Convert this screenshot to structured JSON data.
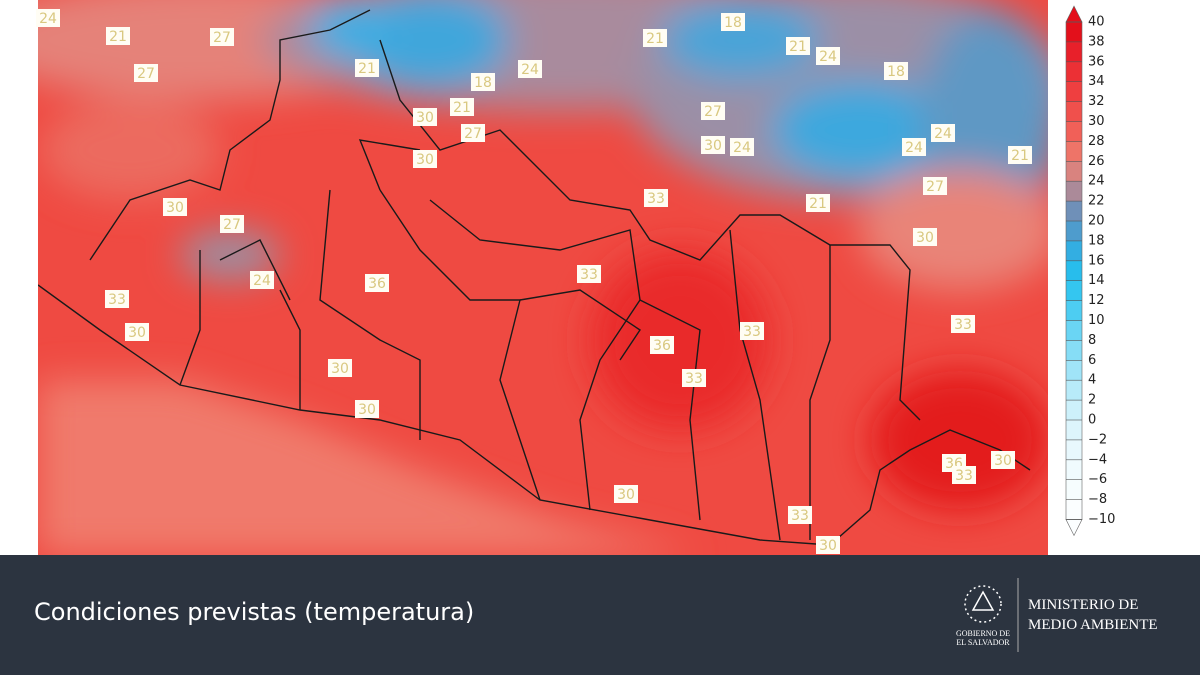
{
  "map": {
    "contour_labels": [
      "24",
      "21",
      "27",
      "27",
      "21",
      "18",
      "24",
      "21",
      "18",
      "21",
      "24",
      "18",
      "27",
      "30",
      "21",
      "27",
      "30",
      "24",
      "24",
      "24",
      "21",
      "30",
      "33",
      "27",
      "21",
      "30",
      "27",
      "30",
      "24",
      "33",
      "36",
      "33",
      "30",
      "33",
      "33",
      "36",
      "30",
      "33",
      "30",
      "36",
      "33",
      "30",
      "30",
      "33",
      "30"
    ]
  },
  "colorbar": {
    "ticks": [
      40,
      38,
      36,
      34,
      32,
      30,
      28,
      26,
      24,
      22,
      20,
      18,
      16,
      14,
      12,
      10,
      8,
      6,
      4,
      2,
      0,
      {
        "value": -2,
        "label": "−2"
      },
      {
        "value": -4,
        "label": "−4"
      },
      {
        "value": -6,
        "label": "−6"
      },
      {
        "value": -8,
        "label": "−8"
      },
      {
        "value": -10,
        "label": "−10"
      }
    ],
    "colors": [
      "#e3101b",
      "#e8202a",
      "#ec3035",
      "#ef3f40",
      "#f0504c",
      "#f16058",
      "#ee7468",
      "#d9837f",
      "#ab8a99",
      "#6f90b8",
      "#4e9ccd",
      "#33aee2",
      "#28bdec",
      "#34c6f0",
      "#4dcdf2",
      "#6ad5f4",
      "#86ddf6",
      "#a0e4f8",
      "#b8ebf9",
      "#cdf1fb",
      "#ddf5fc",
      "#e8f8fd",
      "#f0fbfe",
      "#f6fdfe",
      "#fbfeff"
    ]
  },
  "footer": {
    "title": "Condiciones previstas (temperatura)",
    "government": [
      "GOBIERNO DE",
      "EL SALVADOR"
    ],
    "ministry": [
      "MINISTERIO DE",
      "MEDIO AMBIENTE"
    ]
  }
}
